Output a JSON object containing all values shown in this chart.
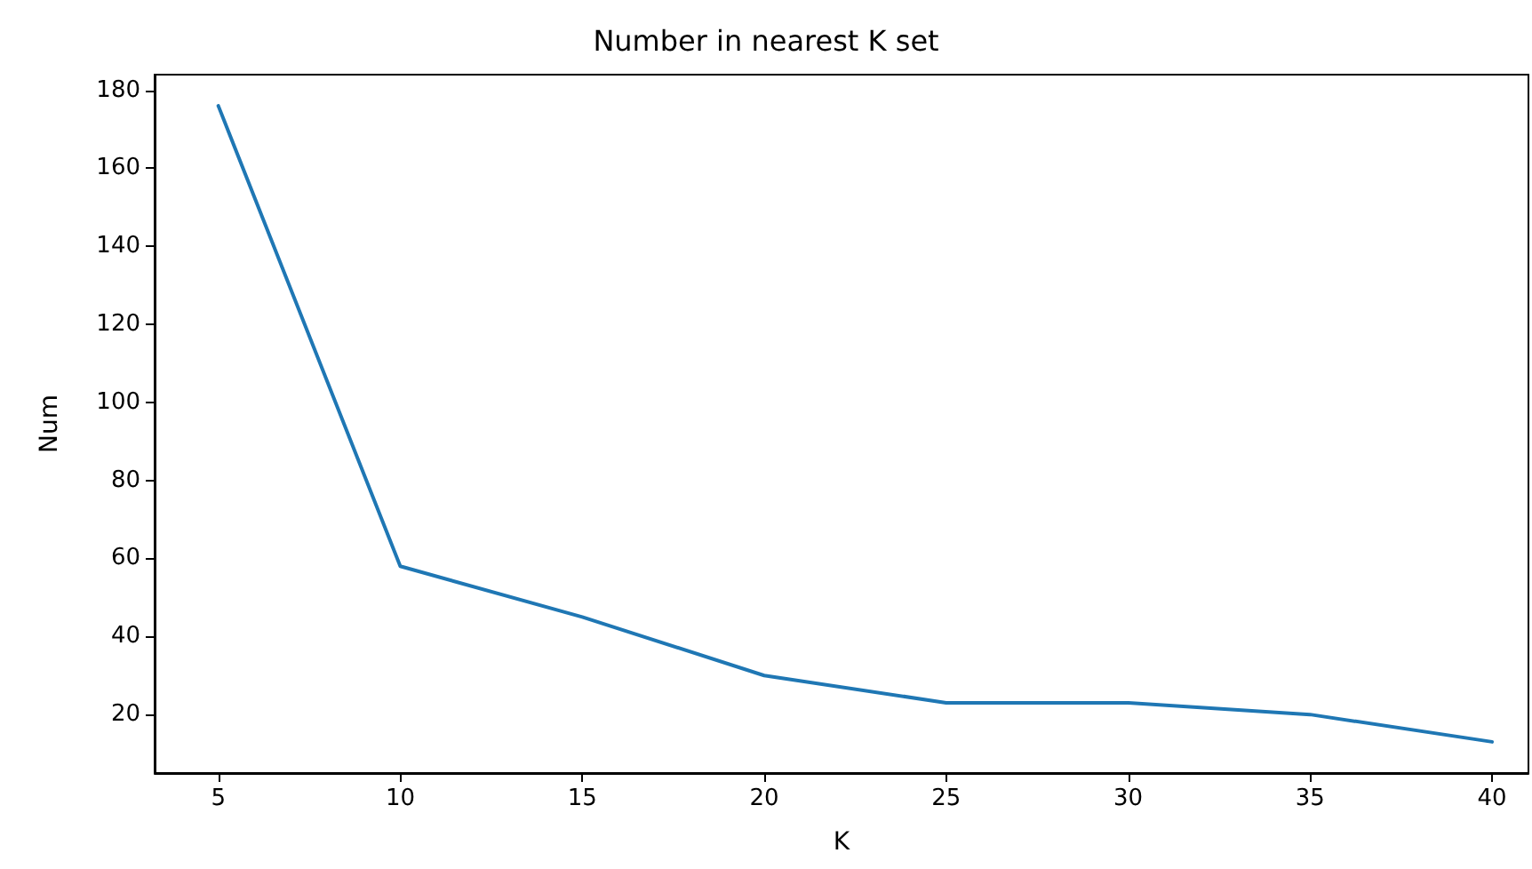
{
  "chart_data": {
    "type": "line",
    "title": "Number in nearest K set",
    "xlabel": "K",
    "ylabel": "Num",
    "x": [
      5,
      10,
      15,
      20,
      25,
      30,
      35,
      40
    ],
    "series": [
      {
        "color": "#1f77b4",
        "values": [
          176,
          58,
          45,
          30,
          23,
          23,
          20,
          13
        ]
      }
    ],
    "xlim": [
      3.25,
      41
    ],
    "xticks": [
      5,
      10,
      15,
      20,
      25,
      30,
      35,
      40
    ],
    "ylim": [
      5,
      184
    ],
    "yticks": [
      20,
      40,
      60,
      80,
      100,
      120,
      140,
      160,
      180
    ],
    "grid": false,
    "marker": "none",
    "line_style": "solid"
  }
}
